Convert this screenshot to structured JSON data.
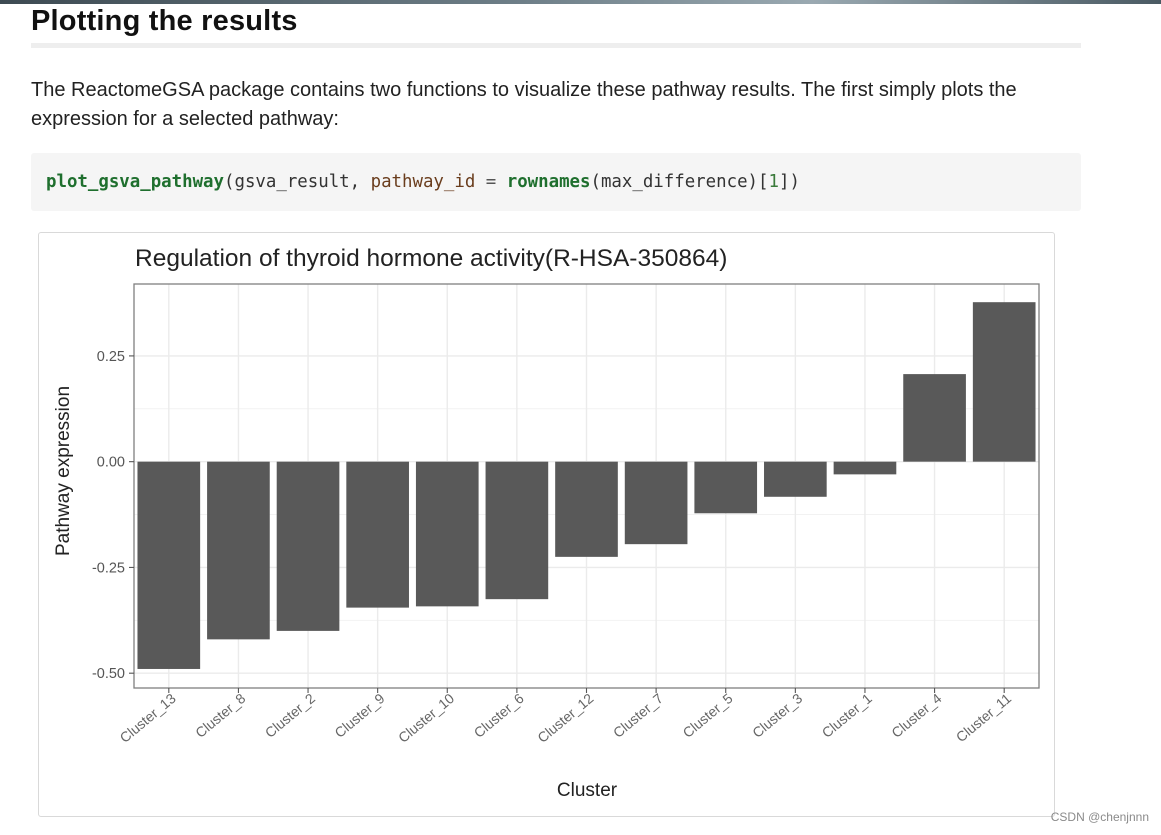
{
  "heading": "Plotting the results",
  "paragraph": "The ReactomeGSA package contains two functions to visualize these pathway results. The first simply plots the expression for a selected pathway:",
  "code": {
    "fn1": "plot_gsva_pathway",
    "p1": "(gsva_result, ",
    "arg": "pathway_id",
    "eq": " = ",
    "fn2": "rownames",
    "p2": "(max_difference)[",
    "num": "1",
    "p3": "])"
  },
  "chart_data": {
    "type": "bar",
    "title": "Regulation of thyroid hormone activity(R-HSA-350864)",
    "xlabel": "Cluster",
    "ylabel": "Pathway expression",
    "categories": [
      "Cluster_13",
      "Cluster_8",
      "Cluster_2",
      "Cluster_9",
      "Cluster_10",
      "Cluster_6",
      "Cluster_12",
      "Cluster_7",
      "Cluster_5",
      "Cluster_3",
      "Cluster_1",
      "Cluster_4",
      "Cluster_11"
    ],
    "values": [
      -0.49,
      -0.42,
      -0.4,
      -0.345,
      -0.342,
      -0.325,
      -0.225,
      -0.195,
      -0.122,
      -0.083,
      -0.03,
      0.207,
      0.377
    ],
    "y_ticks": [
      "0.25",
      "0.00",
      "-0.25",
      "-0.50"
    ],
    "y_tick_values": [
      0.25,
      0.0,
      -0.25,
      -0.5
    ],
    "ylim": [
      -0.535,
      0.42
    ],
    "grid": true,
    "bar_color": "#595959"
  },
  "watermark": "CSDN @chenjnnn"
}
